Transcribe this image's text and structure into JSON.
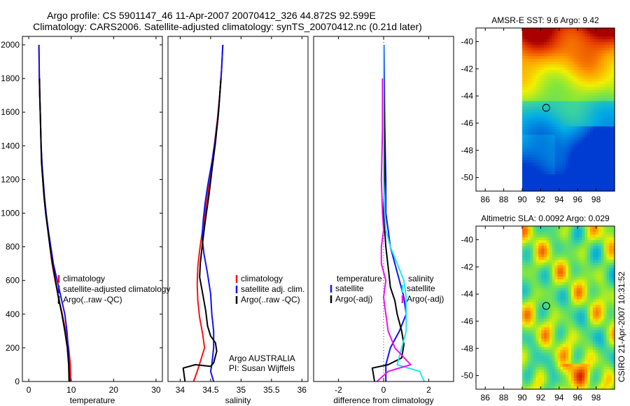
{
  "title": {
    "line1": "Argo profile: CS 5901147_46 11-Apr-2007 20070412_326 44.872S 92.599E",
    "line2": "Climatology: CARS2006. Satellite-adjusted climatology: synTS_20070412.nc (0.21d later)"
  },
  "side_note": "CSIRO 21-Apr-2007 10:31:52",
  "colors": {
    "climatology": "#ff1010",
    "satellite": "#1010ff",
    "argo": "#000000",
    "sal_satellite": "#22e6ee",
    "sal_argo": "#ee10ee",
    "zero_line": "#000000"
  },
  "chart_data": [
    {
      "id": "temperature",
      "type": "line",
      "xlabel": "temperature",
      "ylabel": "",
      "xlim": [
        -1.5,
        31.5
      ],
      "ylim": [
        2050,
        0
      ],
      "xticks": [
        0,
        10,
        20,
        30
      ],
      "yticks": [
        0,
        200,
        400,
        600,
        800,
        1000,
        1200,
        1400,
        1600,
        1800,
        2000
      ],
      "legend": [
        "climatology",
        "satellite-adjusted climatology",
        "Argo(..raw -QC)"
      ],
      "legend_position": "lower-center",
      "series": [
        {
          "name": "climatology",
          "color_key": "climatology",
          "points": [
            [
              9.9,
              0
            ],
            [
              9.8,
              100
            ],
            [
              9.4,
              200
            ],
            [
              8.7,
              300
            ],
            [
              7.9,
              400
            ],
            [
              7.0,
              500
            ],
            [
              6.2,
              600
            ],
            [
              5.5,
              700
            ],
            [
              5.0,
              800
            ],
            [
              4.5,
              900
            ],
            [
              4.0,
              1000
            ],
            [
              3.6,
              1100
            ],
            [
              3.3,
              1200
            ],
            [
              3.1,
              1300
            ],
            [
              2.9,
              1400
            ],
            [
              2.8,
              1500
            ],
            [
              2.7,
              1600
            ],
            [
              2.6,
              1700
            ],
            [
              2.5,
              1800
            ],
            [
              2.45,
              1900
            ],
            [
              2.4,
              2000
            ]
          ]
        },
        {
          "name": "satellite-adjusted climatology",
          "color_key": "satellite",
          "points": [
            [
              9.6,
              0
            ],
            [
              9.5,
              100
            ],
            [
              9.3,
              200
            ],
            [
              9.0,
              300
            ],
            [
              8.5,
              400
            ],
            [
              7.6,
              500
            ],
            [
              6.7,
              600
            ],
            [
              5.8,
              700
            ],
            [
              5.2,
              800
            ],
            [
              4.6,
              900
            ],
            [
              4.1,
              1000
            ],
            [
              3.7,
              1100
            ],
            [
              3.4,
              1200
            ],
            [
              3.1,
              1300
            ],
            [
              2.9,
              1400
            ],
            [
              2.8,
              1500
            ],
            [
              2.7,
              1600
            ],
            [
              2.6,
              1700
            ],
            [
              2.5,
              1800
            ],
            [
              2.45,
              1900
            ],
            [
              2.4,
              2000
            ]
          ]
        },
        {
          "name": "Argo(..raw -QC)",
          "color_key": "argo",
          "points": [
            [
              9.5,
              0
            ],
            [
              9.4,
              100
            ],
            [
              9.1,
              200
            ],
            [
              8.5,
              300
            ],
            [
              7.8,
              400
            ],
            [
              7.0,
              500
            ],
            [
              6.3,
              600
            ],
            [
              5.6,
              700
            ],
            [
              5.0,
              800
            ],
            [
              4.5,
              900
            ],
            [
              4.0,
              1000
            ],
            [
              3.6,
              1100
            ],
            [
              3.3,
              1200
            ],
            [
              3.0,
              1300
            ],
            [
              2.9,
              1400
            ],
            [
              2.8,
              1500
            ],
            [
              2.7,
              1600
            ],
            [
              2.6,
              1700
            ],
            [
              2.55,
              1800
            ]
          ]
        }
      ]
    },
    {
      "id": "salinity",
      "type": "line",
      "xlabel": "salinity",
      "ylabel": "",
      "xlim": [
        33.8,
        36.1
      ],
      "ylim": [
        2050,
        0
      ],
      "xticks": [
        34,
        34.5,
        35,
        35.5,
        36
      ],
      "yticks": [],
      "legend": [
        "climatology",
        "satellite adj. clim.",
        "Argo(..raw -QC)"
      ],
      "legend_position": "lower-center",
      "annotation": [
        "Argo AUSTRALIA",
        "PI: Susan Wijffels"
      ],
      "series": [
        {
          "name": "climatology",
          "color_key": "climatology",
          "points": [
            [
              34.22,
              0
            ],
            [
              34.28,
              60
            ],
            [
              34.35,
              140
            ],
            [
              34.4,
              200
            ],
            [
              34.37,
              280
            ],
            [
              34.32,
              380
            ],
            [
              34.29,
              480
            ],
            [
              34.28,
              580
            ],
            [
              34.29,
              680
            ],
            [
              34.32,
              780
            ],
            [
              34.36,
              880
            ],
            [
              34.4,
              980
            ],
            [
              34.45,
              1100
            ],
            [
              34.5,
              1250
            ],
            [
              34.56,
              1400
            ],
            [
              34.61,
              1550
            ],
            [
              34.65,
              1700
            ],
            [
              34.68,
              1850
            ],
            [
              34.7,
              2000
            ]
          ]
        },
        {
          "name": "satellite adj. clim.",
          "color_key": "satellite",
          "points": [
            [
              34.55,
              0
            ],
            [
              34.5,
              60
            ],
            [
              34.52,
              100
            ],
            [
              34.55,
              200
            ],
            [
              34.55,
              300
            ],
            [
              34.52,
              400
            ],
            [
              34.5,
              520
            ],
            [
              34.45,
              640
            ],
            [
              34.39,
              760
            ],
            [
              34.36,
              860
            ],
            [
              34.38,
              960
            ],
            [
              34.41,
              1060
            ],
            [
              34.46,
              1180
            ],
            [
              34.52,
              1300
            ],
            [
              34.57,
              1420
            ],
            [
              34.62,
              1560
            ],
            [
              34.65,
              1700
            ],
            [
              34.68,
              1850
            ],
            [
              34.7,
              2000
            ]
          ]
        },
        {
          "name": "Argo(..raw -QC)",
          "color_key": "argo",
          "points": [
            [
              34.08,
              0
            ],
            [
              34.05,
              80
            ],
            [
              34.25,
              100
            ],
            [
              34.5,
              90
            ],
            [
              34.55,
              110
            ],
            [
              34.6,
              180
            ],
            [
              34.58,
              230
            ],
            [
              34.5,
              270
            ],
            [
              34.45,
              330
            ],
            [
              34.42,
              420
            ],
            [
              34.37,
              520
            ],
            [
              34.32,
              620
            ],
            [
              34.33,
              700
            ],
            [
              34.36,
              800
            ],
            [
              34.4,
              920
            ],
            [
              34.43,
              1000
            ],
            [
              34.47,
              1100
            ],
            [
              34.52,
              1250
            ],
            [
              34.58,
              1420
            ],
            [
              34.63,
              1600
            ],
            [
              34.67,
              1800
            ]
          ]
        }
      ]
    },
    {
      "id": "difference",
      "type": "line",
      "xlabel": "difference from climatology",
      "ylabel": "",
      "xlim": [
        -3.1,
        3.1
      ],
      "ylim": [
        2050,
        0
      ],
      "xticks": [
        -2,
        0,
        2
      ],
      "yticks": [],
      "zero_line": true,
      "legend_groups": [
        {
          "header": "temperature",
          "items": [
            "satellite",
            "Argo(-adj)"
          ]
        },
        {
          "header": "salinity",
          "items": [
            "satellite",
            "Argo(-adj)"
          ]
        }
      ],
      "legend_position": "lower-center",
      "series": [
        {
          "name": "temperature satellite",
          "color_key": "satellite",
          "points": [
            [
              0.1,
              0
            ],
            [
              0.1,
              100
            ],
            [
              0.3,
              200
            ],
            [
              0.7,
              300
            ],
            [
              1.0,
              400
            ],
            [
              0.9,
              500
            ],
            [
              0.7,
              600
            ],
            [
              0.5,
              700
            ],
            [
              0.3,
              800
            ],
            [
              0.2,
              900
            ],
            [
              0.1,
              1000
            ],
            [
              0.1,
              1200
            ],
            [
              0.05,
              1500
            ],
            [
              0.02,
              2000
            ]
          ]
        },
        {
          "name": "temperature Argo(-adj)",
          "color_key": "argo",
          "points": [
            [
              -0.4,
              0
            ],
            [
              -0.5,
              80
            ],
            [
              0.2,
              100
            ],
            [
              0.8,
              140
            ],
            [
              0.9,
              220
            ],
            [
              0.8,
              300
            ],
            [
              0.6,
              400
            ],
            [
              0.5,
              480
            ],
            [
              0.3,
              560
            ],
            [
              0.2,
              680
            ],
            [
              0.1,
              800
            ],
            [
              0.05,
              900
            ],
            [
              0.0,
              1000
            ],
            [
              0.05,
              1200
            ],
            [
              0.05,
              1500
            ],
            [
              0.0,
              1800
            ]
          ]
        },
        {
          "name": "salinity satellite",
          "color_key": "sal_satellite",
          "points": [
            [
              1.8,
              0
            ],
            [
              1.6,
              60
            ],
            [
              0.6,
              100
            ],
            [
              0.8,
              200
            ],
            [
              1.0,
              300
            ],
            [
              1.0,
              400
            ],
            [
              1.0,
              500
            ],
            [
              0.9,
              600
            ],
            [
              0.6,
              700
            ],
            [
              0.3,
              800
            ],
            [
              0.1,
              900
            ],
            [
              0.05,
              1000
            ],
            [
              0.0,
              1200
            ],
            [
              0.0,
              1500
            ],
            [
              0.0,
              2000
            ]
          ]
        },
        {
          "name": "salinity Argo(-adj)",
          "color_key": "sal_argo",
          "points": [
            [
              -0.3,
              0
            ],
            [
              0.2,
              60
            ],
            [
              1.2,
              100
            ],
            [
              0.5,
              200
            ],
            [
              0.2,
              300
            ],
            [
              0.1,
              400
            ],
            [
              0.0,
              500
            ],
            [
              0.1,
              600
            ],
            [
              -0.1,
              700
            ],
            [
              -0.1,
              800
            ],
            [
              0.0,
              900
            ],
            [
              -0.05,
              1000
            ],
            [
              -0.1,
              1200
            ],
            [
              -0.05,
              1500
            ],
            [
              -0.05,
              1800
            ]
          ]
        }
      ]
    },
    {
      "id": "sst_map",
      "type": "heatmap",
      "title": "AMSR-E SST: 9.6 Argo: 9.42",
      "xlim": [
        85,
        100
      ],
      "ylim": [
        -51,
        -39
      ],
      "xticks": [
        86,
        88,
        90,
        92,
        94,
        96,
        98
      ],
      "yticks": [
        -40,
        -42,
        -44,
        -46,
        -48,
        -50
      ],
      "data_xlim": [
        90,
        100
      ],
      "marker": {
        "lon": 92.599,
        "lat": -44.872
      }
    },
    {
      "id": "sla_map",
      "type": "heatmap",
      "title": "Altimetric SLA: 0.0092 Argo: 0.029",
      "xlim": [
        85,
        100
      ],
      "ylim": [
        -51,
        -39
      ],
      "xticks": [
        86,
        88,
        90,
        92,
        94,
        96,
        98
      ],
      "yticks": [
        -40,
        -42,
        -44,
        -46,
        -48,
        -50
      ],
      "data_xlim": [
        90,
        100
      ],
      "marker": {
        "lon": 92.599,
        "lat": -44.872
      }
    }
  ]
}
